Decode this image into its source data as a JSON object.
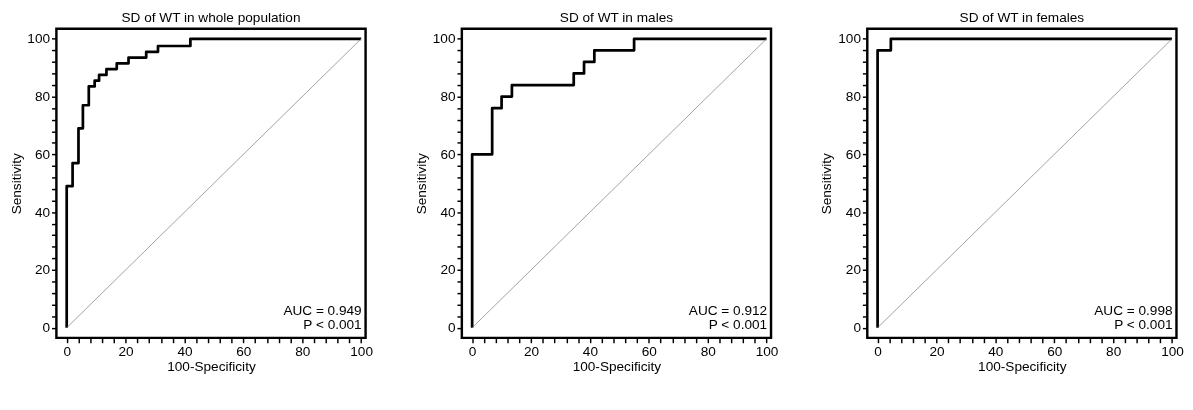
{
  "chart_data": [
    {
      "type": "step",
      "title": "SD of WT in whole population",
      "xlabel": "100-Specificity",
      "ylabel": "Sensitivity",
      "xlim": [
        -3.5,
        101.5
      ],
      "ylim": [
        -3.5,
        103.5
      ],
      "xticks": [
        0,
        {
          "value": 4,
          "label": null
        },
        {
          "value": 8,
          "label": null
        },
        {
          "value": 12,
          "label": null
        },
        {
          "value": 16,
          "label": null
        },
        20,
        {
          "value": 24,
          "label": null
        },
        {
          "value": 28,
          "label": null
        },
        {
          "value": 32,
          "label": null
        },
        {
          "value": 36,
          "label": null
        },
        40,
        {
          "value": 44,
          "label": null
        },
        {
          "value": 48,
          "label": null
        },
        {
          "value": 52,
          "label": null
        },
        {
          "value": 56,
          "label": null
        },
        60,
        {
          "value": 64,
          "label": null
        },
        {
          "value": 68,
          "label": null
        },
        {
          "value": 72,
          "label": null
        },
        {
          "value": 76,
          "label": null
        },
        80,
        {
          "value": 84,
          "label": null
        },
        {
          "value": 88,
          "label": null
        },
        {
          "value": 92,
          "label": null
        },
        {
          "value": 96,
          "label": null
        },
        100
      ],
      "yticks": [
        0,
        {
          "value": 4,
          "label": null
        },
        {
          "value": 8,
          "label": null
        },
        {
          "value": 12,
          "label": null
        },
        {
          "value": 16,
          "label": null
        },
        20,
        {
          "value": 24,
          "label": null
        },
        {
          "value": 28,
          "label": null
        },
        {
          "value": 32,
          "label": null
        },
        {
          "value": 36,
          "label": null
        },
        40,
        {
          "value": 44,
          "label": null
        },
        {
          "value": 48,
          "label": null
        },
        {
          "value": 52,
          "label": null
        },
        {
          "value": 56,
          "label": null
        },
        60,
        {
          "value": 64,
          "label": null
        },
        {
          "value": 68,
          "label": null
        },
        {
          "value": 72,
          "label": null
        },
        {
          "value": 76,
          "label": null
        },
        80,
        {
          "value": 84,
          "label": null
        },
        {
          "value": 88,
          "label": null
        },
        {
          "value": 92,
          "label": null
        },
        {
          "value": 96,
          "label": null
        },
        100
      ],
      "grid": false,
      "legend": false,
      "annotations": [
        "AUC = 0.949",
        "P < 0.001"
      ],
      "series": [
        {
          "type": "step",
          "color": "#000000",
          "x": [
            0,
            0,
            2,
            4,
            5.5,
            7.5,
            9.5,
            11,
            13.5,
            17,
            21,
            27,
            31,
            42,
            100
          ],
          "values": [
            0,
            49,
            57,
            69,
            77,
            83.5,
            85.5,
            87.5,
            89.5,
            91.5,
            93.5,
            95.5,
            97.5,
            100,
            100
          ]
        },
        {
          "type": "line",
          "color": "#888888",
          "x": [
            0,
            100
          ],
          "values": [
            0,
            100
          ]
        }
      ]
    },
    {
      "type": "step",
      "title": "SD of WT in males",
      "xlabel": "100-Specificity",
      "ylabel": "Sensitivity",
      "xlim": [
        -3.5,
        101.5
      ],
      "ylim": [
        -3.5,
        103.5
      ],
      "xticks": [
        0,
        {
          "value": 4,
          "label": null
        },
        {
          "value": 8,
          "label": null
        },
        {
          "value": 12,
          "label": null
        },
        {
          "value": 16,
          "label": null
        },
        20,
        {
          "value": 24,
          "label": null
        },
        {
          "value": 28,
          "label": null
        },
        {
          "value": 32,
          "label": null
        },
        {
          "value": 36,
          "label": null
        },
        40,
        {
          "value": 44,
          "label": null
        },
        {
          "value": 48,
          "label": null
        },
        {
          "value": 52,
          "label": null
        },
        {
          "value": 56,
          "label": null
        },
        60,
        {
          "value": 64,
          "label": null
        },
        {
          "value": 68,
          "label": null
        },
        {
          "value": 72,
          "label": null
        },
        {
          "value": 76,
          "label": null
        },
        80,
        {
          "value": 84,
          "label": null
        },
        {
          "value": 88,
          "label": null
        },
        {
          "value": 92,
          "label": null
        },
        {
          "value": 96,
          "label": null
        },
        100
      ],
      "yticks": [
        0,
        {
          "value": 4,
          "label": null
        },
        {
          "value": 8,
          "label": null
        },
        {
          "value": 12,
          "label": null
        },
        {
          "value": 16,
          "label": null
        },
        20,
        {
          "value": 24,
          "label": null
        },
        {
          "value": 28,
          "label": null
        },
        {
          "value": 32,
          "label": null
        },
        {
          "value": 36,
          "label": null
        },
        40,
        {
          "value": 44,
          "label": null
        },
        {
          "value": 48,
          "label": null
        },
        {
          "value": 52,
          "label": null
        },
        {
          "value": 56,
          "label": null
        },
        60,
        {
          "value": 64,
          "label": null
        },
        {
          "value": 68,
          "label": null
        },
        {
          "value": 72,
          "label": null
        },
        {
          "value": 76,
          "label": null
        },
        80,
        {
          "value": 84,
          "label": null
        },
        {
          "value": 88,
          "label": null
        },
        {
          "value": 92,
          "label": null
        },
        {
          "value": 96,
          "label": null
        },
        100
      ],
      "grid": false,
      "legend": false,
      "annotations": [
        "AUC = 0.912",
        "P < 0.001"
      ],
      "series": [
        {
          "type": "step",
          "color": "#000000",
          "x": [
            0,
            0,
            6.8,
            10,
            13.5,
            34.5,
            38,
            41.5,
            55,
            100
          ],
          "values": [
            0,
            60,
            76,
            80,
            84,
            88,
            92,
            96,
            100,
            100
          ]
        },
        {
          "type": "line",
          "color": "#888888",
          "x": [
            0,
            100
          ],
          "values": [
            0,
            100
          ]
        }
      ]
    },
    {
      "type": "step",
      "title": "SD of WT in females",
      "xlabel": "100-Specificity",
      "ylabel": "Sensitivity",
      "xlim": [
        -3.5,
        101.5
      ],
      "ylim": [
        -3.5,
        103.5
      ],
      "xticks": [
        0,
        {
          "value": 4,
          "label": null
        },
        {
          "value": 8,
          "label": null
        },
        {
          "value": 12,
          "label": null
        },
        {
          "value": 16,
          "label": null
        },
        20,
        {
          "value": 24,
          "label": null
        },
        {
          "value": 28,
          "label": null
        },
        {
          "value": 32,
          "label": null
        },
        {
          "value": 36,
          "label": null
        },
        40,
        {
          "value": 44,
          "label": null
        },
        {
          "value": 48,
          "label": null
        },
        {
          "value": 52,
          "label": null
        },
        {
          "value": 56,
          "label": null
        },
        60,
        {
          "value": 64,
          "label": null
        },
        {
          "value": 68,
          "label": null
        },
        {
          "value": 72,
          "label": null
        },
        {
          "value": 76,
          "label": null
        },
        80,
        {
          "value": 84,
          "label": null
        },
        {
          "value": 88,
          "label": null
        },
        {
          "value": 92,
          "label": null
        },
        {
          "value": 96,
          "label": null
        },
        100
      ],
      "yticks": [
        0,
        {
          "value": 4,
          "label": null
        },
        {
          "value": 8,
          "label": null
        },
        {
          "value": 12,
          "label": null
        },
        {
          "value": 16,
          "label": null
        },
        20,
        {
          "value": 24,
          "label": null
        },
        {
          "value": 28,
          "label": null
        },
        {
          "value": 32,
          "label": null
        },
        {
          "value": 36,
          "label": null
        },
        40,
        {
          "value": 44,
          "label": null
        },
        {
          "value": 48,
          "label": null
        },
        {
          "value": 52,
          "label": null
        },
        {
          "value": 56,
          "label": null
        },
        60,
        {
          "value": 64,
          "label": null
        },
        {
          "value": 68,
          "label": null
        },
        {
          "value": 72,
          "label": null
        },
        {
          "value": 76,
          "label": null
        },
        80,
        {
          "value": 84,
          "label": null
        },
        {
          "value": 88,
          "label": null
        },
        {
          "value": 92,
          "label": null
        },
        {
          "value": 96,
          "label": null
        },
        100
      ],
      "grid": false,
      "legend": false,
      "annotations": [
        "AUC = 0.998",
        "P < 0.001"
      ],
      "series": [
        {
          "type": "step",
          "color": "#000000",
          "x": [
            0,
            0,
            4.5,
            100
          ],
          "values": [
            0,
            96,
            100,
            100
          ]
        },
        {
          "type": "line",
          "color": "#888888",
          "x": [
            0,
            100
          ],
          "values": [
            0,
            100
          ]
        }
      ]
    }
  ]
}
